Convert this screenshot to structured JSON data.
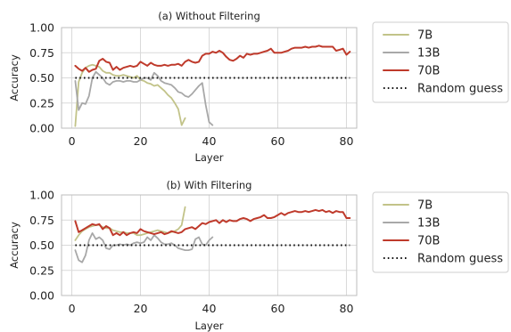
{
  "colors": {
    "s7b": "#c2c389",
    "s13b": "#a8a8a8",
    "s70b": "#bf3a2b",
    "random": "#111111"
  },
  "chart_data": [
    {
      "type": "line",
      "title": "(a) Without Filtering",
      "xlabel": "Layer",
      "ylabel": "Accuracy",
      "xlim": [
        -3,
        83
      ],
      "ylim": [
        0,
        1
      ],
      "xticks": [
        "0",
        "20",
        "40",
        "60",
        "80"
      ],
      "yticks": [
        "0.00",
        "0.25",
        "0.50",
        "0.75",
        "1.00"
      ],
      "grid": true,
      "legend_position": "right",
      "series": [
        {
          "name": "7B",
          "x": [
            1,
            2,
            3,
            4,
            5,
            6,
            7,
            8,
            9,
            10,
            11,
            12,
            13,
            14,
            15,
            16,
            17,
            18,
            19,
            20,
            21,
            22,
            23,
            24,
            25,
            26,
            27,
            28,
            29,
            30,
            31,
            32,
            33
          ],
          "y": [
            0.02,
            0.46,
            0.55,
            0.6,
            0.62,
            0.63,
            0.62,
            0.61,
            0.57,
            0.55,
            0.55,
            0.53,
            0.52,
            0.52,
            0.53,
            0.52,
            0.51,
            0.5,
            0.52,
            0.48,
            0.47,
            0.45,
            0.44,
            0.42,
            0.43,
            0.4,
            0.37,
            0.33,
            0.3,
            0.25,
            0.19,
            0.03,
            0.1
          ]
        },
        {
          "name": "13B",
          "x": [
            1,
            2,
            3,
            4,
            5,
            6,
            7,
            8,
            9,
            10,
            11,
            12,
            13,
            14,
            15,
            16,
            17,
            18,
            19,
            20,
            21,
            22,
            23,
            24,
            25,
            26,
            27,
            28,
            29,
            30,
            31,
            32,
            33,
            34,
            35,
            36,
            37,
            38,
            39,
            40,
            41
          ],
          "y": [
            0.47,
            0.18,
            0.25,
            0.24,
            0.32,
            0.5,
            0.56,
            0.53,
            0.5,
            0.45,
            0.43,
            0.46,
            0.47,
            0.47,
            0.46,
            0.47,
            0.47,
            0.46,
            0.46,
            0.48,
            0.5,
            0.5,
            0.48,
            0.55,
            0.52,
            0.47,
            0.45,
            0.44,
            0.43,
            0.4,
            0.36,
            0.35,
            0.32,
            0.31,
            0.34,
            0.38,
            0.42,
            0.45,
            0.23,
            0.06,
            0.03
          ]
        },
        {
          "name": "70B",
          "x": [
            1,
            2,
            3,
            4,
            5,
            6,
            7,
            8,
            9,
            10,
            11,
            12,
            13,
            14,
            15,
            16,
            17,
            18,
            19,
            20,
            21,
            22,
            23,
            24,
            25,
            26,
            27,
            28,
            29,
            30,
            31,
            32,
            33,
            34,
            35,
            36,
            37,
            38,
            39,
            40,
            41,
            42,
            43,
            44,
            45,
            46,
            47,
            48,
            49,
            50,
            51,
            52,
            53,
            54,
            55,
            56,
            57,
            58,
            59,
            60,
            61,
            62,
            63,
            64,
            65,
            66,
            67,
            68,
            69,
            70,
            71,
            72,
            73,
            74,
            75,
            76,
            77,
            78,
            79,
            80,
            81
          ],
          "y": [
            0.62,
            0.59,
            0.57,
            0.6,
            0.56,
            0.58,
            0.59,
            0.67,
            0.69,
            0.66,
            0.65,
            0.58,
            0.61,
            0.58,
            0.6,
            0.61,
            0.62,
            0.61,
            0.62,
            0.66,
            0.64,
            0.62,
            0.65,
            0.63,
            0.62,
            0.62,
            0.63,
            0.62,
            0.63,
            0.63,
            0.64,
            0.62,
            0.66,
            0.68,
            0.66,
            0.65,
            0.66,
            0.72,
            0.74,
            0.74,
            0.76,
            0.75,
            0.77,
            0.75,
            0.71,
            0.68,
            0.67,
            0.69,
            0.72,
            0.7,
            0.74,
            0.73,
            0.74,
            0.74,
            0.75,
            0.76,
            0.77,
            0.79,
            0.75,
            0.75,
            0.75,
            0.76,
            0.77,
            0.79,
            0.8,
            0.8,
            0.8,
            0.81,
            0.8,
            0.81,
            0.81,
            0.82,
            0.81,
            0.81,
            0.81,
            0.81,
            0.77,
            0.78,
            0.79,
            0.73,
            0.76
          ]
        },
        {
          "name": "Random guess",
          "x": [
            1,
            81
          ],
          "y": [
            0.5,
            0.5
          ]
        }
      ]
    },
    {
      "type": "line",
      "title": "(b) With Filtering",
      "xlabel": "Layer",
      "ylabel": "Accuracy",
      "xlim": [
        -3,
        83
      ],
      "ylim": [
        0,
        1
      ],
      "xticks": [
        "0",
        "20",
        "40",
        "60",
        "80"
      ],
      "yticks": [
        "0.00",
        "0.25",
        "0.50",
        "0.75",
        "1.00"
      ],
      "grid": true,
      "legend_position": "right",
      "series": [
        {
          "name": "7B",
          "x": [
            1,
            2,
            3,
            4,
            5,
            6,
            7,
            8,
            9,
            10,
            11,
            12,
            13,
            14,
            15,
            16,
            17,
            18,
            19,
            20,
            21,
            22,
            23,
            24,
            25,
            26,
            27,
            28,
            29,
            30,
            31,
            32,
            33
          ],
          "y": [
            0.55,
            0.6,
            0.64,
            0.66,
            0.68,
            0.69,
            0.7,
            0.7,
            0.68,
            0.67,
            0.67,
            0.65,
            0.64,
            0.63,
            0.63,
            0.62,
            0.62,
            0.62,
            0.6,
            0.6,
            0.61,
            0.62,
            0.63,
            0.64,
            0.65,
            0.64,
            0.63,
            0.62,
            0.63,
            0.64,
            0.66,
            0.7,
            0.88
          ]
        },
        {
          "name": "13B",
          "x": [
            1,
            2,
            3,
            4,
            5,
            6,
            7,
            8,
            9,
            10,
            11,
            12,
            13,
            14,
            15,
            16,
            17,
            18,
            19,
            20,
            21,
            22,
            23,
            24,
            25,
            26,
            27,
            28,
            29,
            30,
            31,
            32,
            33,
            34,
            35,
            36,
            37,
            38,
            39,
            40,
            41
          ],
          "y": [
            0.45,
            0.35,
            0.33,
            0.4,
            0.55,
            0.62,
            0.56,
            0.58,
            0.55,
            0.47,
            0.46,
            0.5,
            0.5,
            0.51,
            0.5,
            0.51,
            0.5,
            0.52,
            0.53,
            0.52,
            0.53,
            0.58,
            0.55,
            0.6,
            0.57,
            0.53,
            0.51,
            0.51,
            0.52,
            0.5,
            0.47,
            0.46,
            0.45,
            0.45,
            0.46,
            0.56,
            0.58,
            0.51,
            0.5,
            0.55,
            0.58
          ]
        },
        {
          "name": "70B",
          "x": [
            1,
            2,
            3,
            4,
            5,
            6,
            7,
            8,
            9,
            10,
            11,
            12,
            13,
            14,
            15,
            16,
            17,
            18,
            19,
            20,
            21,
            22,
            23,
            24,
            25,
            26,
            27,
            28,
            29,
            30,
            31,
            32,
            33,
            34,
            35,
            36,
            37,
            38,
            39,
            40,
            41,
            42,
            43,
            44,
            45,
            46,
            47,
            48,
            49,
            50,
            51,
            52,
            53,
            54,
            55,
            56,
            57,
            58,
            59,
            60,
            61,
            62,
            63,
            64,
            65,
            66,
            67,
            68,
            69,
            70,
            71,
            72,
            73,
            74,
            75,
            76,
            77,
            78,
            79,
            80,
            81
          ],
          "y": [
            0.74,
            0.63,
            0.65,
            0.67,
            0.69,
            0.71,
            0.7,
            0.71,
            0.66,
            0.69,
            0.67,
            0.6,
            0.62,
            0.6,
            0.63,
            0.6,
            0.62,
            0.63,
            0.62,
            0.66,
            0.64,
            0.63,
            0.62,
            0.61,
            0.62,
            0.63,
            0.61,
            0.62,
            0.64,
            0.63,
            0.62,
            0.63,
            0.66,
            0.67,
            0.68,
            0.66,
            0.69,
            0.72,
            0.71,
            0.73,
            0.74,
            0.75,
            0.72,
            0.75,
            0.73,
            0.75,
            0.74,
            0.74,
            0.76,
            0.77,
            0.76,
            0.74,
            0.76,
            0.77,
            0.78,
            0.8,
            0.77,
            0.77,
            0.78,
            0.8,
            0.82,
            0.8,
            0.82,
            0.83,
            0.84,
            0.83,
            0.83,
            0.84,
            0.83,
            0.84,
            0.85,
            0.84,
            0.85,
            0.83,
            0.84,
            0.82,
            0.84,
            0.83,
            0.83,
            0.77,
            0.77
          ]
        },
        {
          "name": "Random guess",
          "x": [
            1,
            81
          ],
          "y": [
            0.5,
            0.5
          ]
        }
      ]
    }
  ]
}
